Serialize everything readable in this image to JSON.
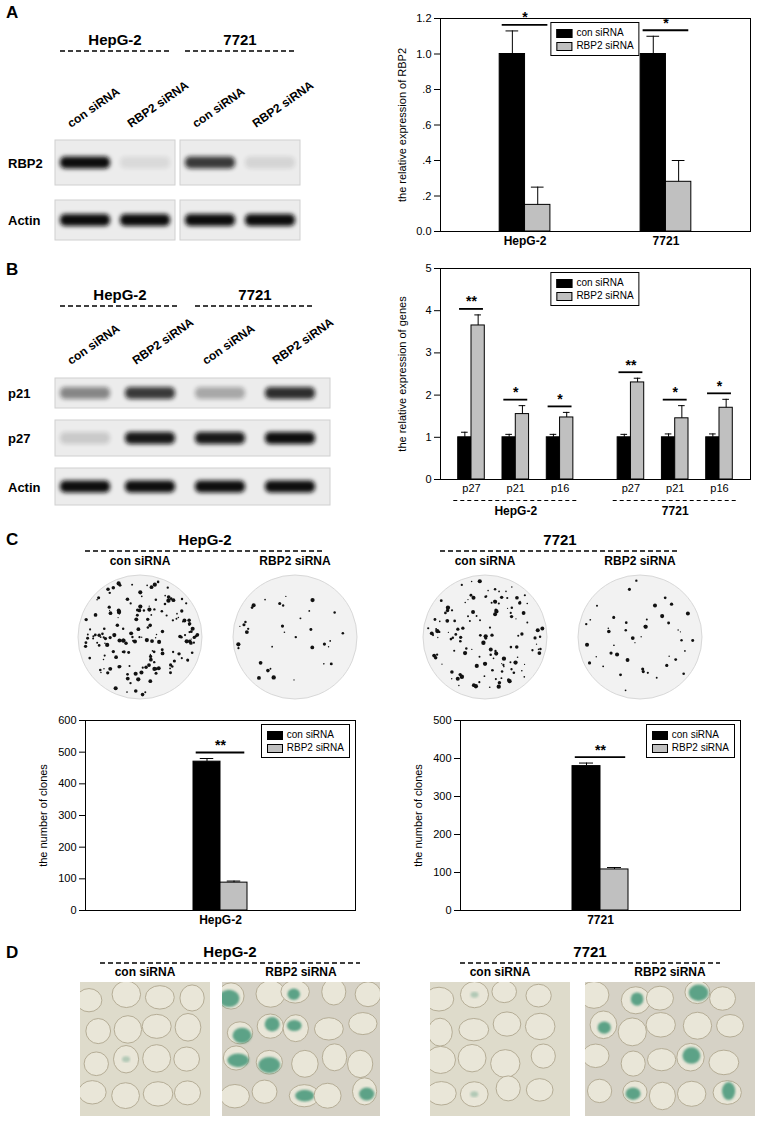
{
  "panels": [
    "A",
    "B",
    "C",
    "D"
  ],
  "blots": [
    {
      "groups": [
        "HepG-2",
        "7721"
      ],
      "lanes": [
        "con siRNA",
        "RBP2 siRNA",
        "con siRNA",
        "RBP2 siRNA"
      ],
      "rows": [
        "RBP2",
        "Actin"
      ]
    },
    {
      "groups": [
        "HepG-2",
        "7721"
      ],
      "lanes": [
        "con siRNA",
        "RBP2 siRNA",
        "con siRNA",
        "RBP2  siRNA"
      ],
      "rows": [
        "p21",
        "p27",
        "Actin"
      ]
    }
  ],
  "colony_plates": [
    {
      "group": "HepG-2",
      "lanes": [
        "con siRNA",
        "RBP2 siRNA"
      ]
    },
    {
      "group": "7721",
      "lanes": [
        "con siRNA",
        "RBP2 siRNA"
      ]
    }
  ],
  "staining_images": [
    {
      "group": "HepG-2",
      "lanes": [
        "con siRNA",
        "RBP2 siRNA"
      ]
    },
    {
      "group": "7721",
      "lanes": [
        "con siRNA",
        "RBP2 siRNA"
      ]
    }
  ],
  "chart_data": [
    {
      "type": "bar",
      "ylabel": "the relative expression of RBP2",
      "categories": [
        "HepG-2",
        "7721"
      ],
      "series": [
        {
          "name": "con siRNA",
          "color": "#000000",
          "values": [
            1.0,
            1.0
          ],
          "errors": [
            0.13,
            0.1
          ]
        },
        {
          "name": "RBP2 siRNA",
          "color": "#c0c0c0",
          "values": [
            0.15,
            0.28
          ],
          "errors": [
            0.1,
            0.12
          ]
        }
      ],
      "significance": [
        "*",
        "*"
      ],
      "ylim": [
        0,
        1.2
      ],
      "yticks": [
        {
          "value": 0,
          "label": "0.0"
        },
        {
          "value": 0.2,
          "label": ".2"
        },
        {
          "value": 0.4,
          "label": ".4"
        },
        {
          "value": 0.6,
          "label": ".6"
        },
        {
          "value": 0.8,
          "label": ".8"
        },
        {
          "value": 1,
          "label": "1.0"
        },
        {
          "value": 1.2,
          "label": "1.2"
        }
      ],
      "legend": "top",
      "grid": false
    },
    {
      "type": "bar",
      "ylabel": "the relative expression of genes",
      "categories": [
        "p27",
        "p21",
        "p16",
        "p27",
        "p21",
        "p16"
      ],
      "category_groups": [
        "HepG-2",
        "HepG-2",
        "HepG-2",
        "7721",
        "7721",
        "7721"
      ],
      "series": [
        {
          "name": "con siRNA",
          "color": "#000000",
          "values": [
            1,
            1,
            1,
            1,
            1,
            1
          ],
          "errors": [
            0.12,
            0.07,
            0.07,
            0.07,
            0.08,
            0.08
          ]
        },
        {
          "name": "RBP2 siRNA",
          "color": "#c0c0c0",
          "values": [
            3.65,
            1.55,
            1.47,
            2.3,
            1.45,
            1.7
          ],
          "errors": [
            0.25,
            0.2,
            0.12,
            0.1,
            0.3,
            0.2
          ]
        }
      ],
      "significance": [
        "**",
        "*",
        "*",
        "**",
        "*",
        "*"
      ],
      "ylim": [
        0,
        5
      ],
      "yticks": [
        0,
        1,
        2,
        3,
        4,
        5
      ],
      "legend": "top",
      "grid": false
    },
    {
      "type": "bar",
      "ylabel": "the number of clones",
      "categories": [
        "HepG-2"
      ],
      "series": [
        {
          "name": "con siRNA",
          "color": "#000000",
          "values": [
            470
          ],
          "errors": [
            10
          ]
        },
        {
          "name": "RBP2 siRNA",
          "color": "#c0c0c0",
          "values": [
            88
          ],
          "errors": [
            5
          ]
        }
      ],
      "significance": [
        "**"
      ],
      "ylim": [
        0,
        600
      ],
      "yticks": [
        0,
        100,
        200,
        300,
        400,
        500,
        600
      ],
      "legend": "top-right",
      "grid": false
    },
    {
      "type": "bar",
      "ylabel": "the number of clones",
      "categories": [
        "7721"
      ],
      "series": [
        {
          "name": "con siRNA",
          "color": "#000000",
          "values": [
            380
          ],
          "errors": [
            8
          ]
        },
        {
          "name": "RBP2 siRNA",
          "color": "#c0c0c0",
          "values": [
            108
          ],
          "errors": [
            5
          ]
        }
      ],
      "significance": [
        "**"
      ],
      "ylim": [
        0,
        500
      ],
      "yticks": [
        0,
        100,
        200,
        300,
        400,
        500
      ],
      "legend": "top-right",
      "grid": false
    }
  ]
}
